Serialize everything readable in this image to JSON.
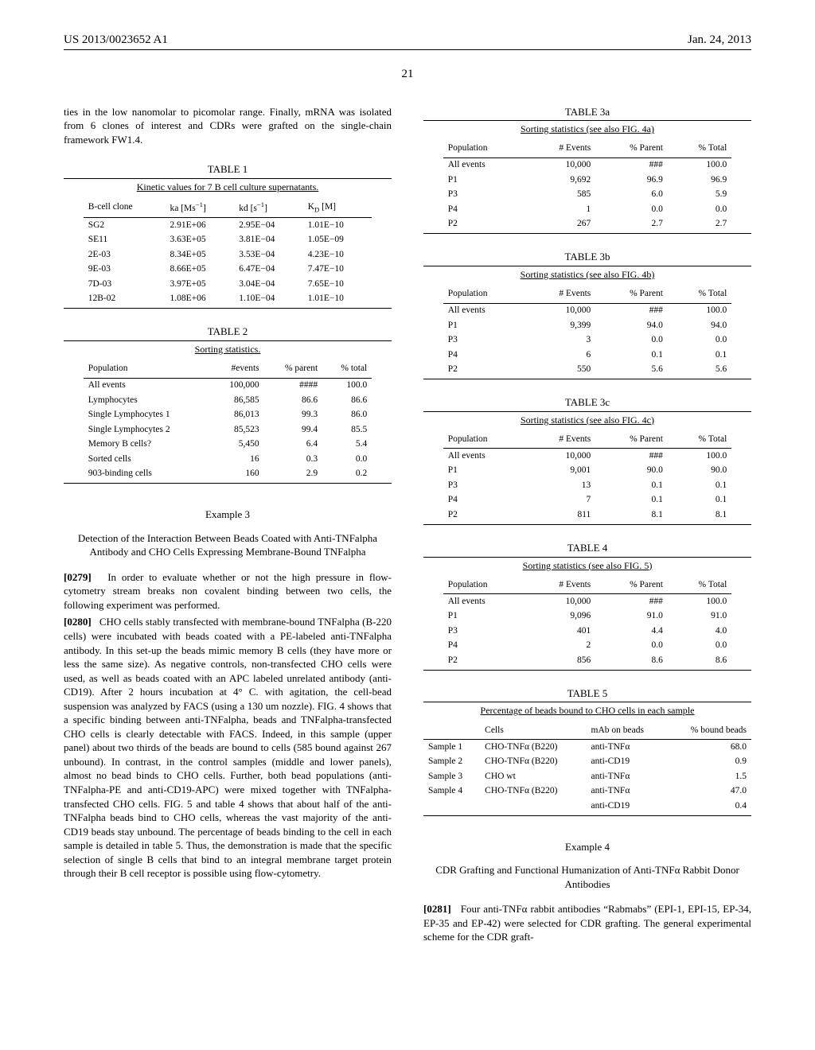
{
  "header": {
    "pub_number": "US 2013/0023652 A1",
    "pub_date": "Jan. 24, 2013",
    "page_number": "21"
  },
  "intro_text": "ties in the low nanomolar to picomolar range. Finally, mRNA was isolated from 6 clones of interest and CDRs were grafted on the single-chain framework FW1.4.",
  "table1": {
    "caption": "TABLE 1",
    "subcaption": "Kinetic values for 7 B cell culture supernatants.",
    "columns": [
      "B-cell clone",
      "ka [Ms⁻¹]",
      "kd [s⁻¹]",
      "K_D [M]"
    ],
    "rows": [
      [
        "SG2",
        "2.91E+06",
        "2.95E−04",
        "1.01E−10"
      ],
      [
        "SE11",
        "3.63E+05",
        "3.81E−04",
        "1.05E−09"
      ],
      [
        "2E-03",
        "8.34E+05",
        "3.53E−04",
        "4.23E−10"
      ],
      [
        "9E-03",
        "8.66E+05",
        "6.47E−04",
        "7.47E−10"
      ],
      [
        "7D-03",
        "3.97E+05",
        "3.04E−04",
        "7.65E−10"
      ],
      [
        "12B-02",
        "1.08E+06",
        "1.10E−04",
        "1.01E−10"
      ]
    ]
  },
  "table2": {
    "caption": "TABLE 2",
    "subcaption": "Sorting statistics.",
    "columns": [
      "Population",
      "#events",
      "% parent",
      "% total"
    ],
    "rows": [
      [
        "All events",
        "100,000",
        "####",
        "100.0"
      ],
      [
        "Lymphocytes",
        "86,585",
        "86.6",
        "86.6"
      ],
      [
        "Single Lymphocytes 1",
        "86,013",
        "99.3",
        "86.0"
      ],
      [
        "Single Lymphocytes 2",
        "85,523",
        "99.4",
        "85.5"
      ],
      [
        "Memory B cells?",
        "5,450",
        "6.4",
        "5.4"
      ],
      [
        "Sorted cells",
        "16",
        "0.3",
        "0.0"
      ],
      [
        "903-binding cells",
        "160",
        "2.9",
        "0.2"
      ]
    ]
  },
  "example3": {
    "label": "Example 3",
    "title": "Detection of the Interaction Between Beads Coated with Anti-TNFalpha Antibody and CHO Cells Expressing Membrane-Bound TNFalpha",
    "para1_num": "[0279]",
    "para1_text": "In order to evaluate whether or not the high pressure in flow-cytometry stream breaks non covalent binding between two cells, the following experiment was performed.",
    "para2_num": "[0280]",
    "para2_text": "CHO cells stably transfected with membrane-bound TNFalpha (B-220 cells) were incubated with beads coated with a PE-labeled anti-TNFalpha antibody. In this set-up the beads mimic memory B cells (they have more or less the same size). As negative controls, non-transfected CHO cells were used, as well as beads coated with an APC labeled unrelated antibody (anti-CD19). After 2 hours incubation at 4° C. with agitation, the cell-bead suspension was analyzed by FACS (using a 130 um nozzle). FIG. 4 shows that a specific binding between anti-TNFalpha, beads and TNFalpha-transfected CHO cells is clearly detectable with FACS. Indeed, in this sample (upper panel) about two thirds of the beads are bound to cells (585 bound against 267 unbound). In contrast, in the control samples (middle and lower panels), almost no bead binds to CHO cells. Further, both bead populations (anti-TNFalpha-PE and anti-CD19-APC) were mixed together with TNFalpha-transfected CHO cells. FIG. 5 and table 4 shows that about half of the anti-TNFalpha beads bind to CHO cells, whereas the vast majority of the anti-CD19 beads stay unbound. The percentage of beads binding to the cell in each sample is detailed in table 5. Thus, the demonstration is made that the specific selection of single B cells that bind to an integral membrane target protein through their B cell receptor is possible using flow-cytometry."
  },
  "table3a": {
    "caption": "TABLE 3a",
    "subcaption": "Sorting statistics (see also FIG. 4a)",
    "columns": [
      "Population",
      "# Events",
      "% Parent",
      "% Total"
    ],
    "rows": [
      [
        "All events",
        "10,000",
        "###",
        "100.0"
      ],
      [
        "P1",
        "9,692",
        "96.9",
        "96.9"
      ],
      [
        "P3",
        "585",
        "6.0",
        "5.9"
      ],
      [
        "P4",
        "1",
        "0.0",
        "0.0"
      ],
      [
        "P2",
        "267",
        "2.7",
        "2.7"
      ]
    ]
  },
  "table3b": {
    "caption": "TABLE 3b",
    "subcaption": "Sorting statistics (see also FIG. 4b)",
    "columns": [
      "Population",
      "# Events",
      "% Parent",
      "% Total"
    ],
    "rows": [
      [
        "All events",
        "10,000",
        "###",
        "100.0"
      ],
      [
        "P1",
        "9,399",
        "94.0",
        "94.0"
      ],
      [
        "P3",
        "3",
        "0.0",
        "0.0"
      ],
      [
        "P4",
        "6",
        "0.1",
        "0.1"
      ],
      [
        "P2",
        "550",
        "5.6",
        "5.6"
      ]
    ]
  },
  "table3c": {
    "caption": "TABLE 3c",
    "subcaption": "Sorting statistics (see also FIG. 4c)",
    "columns": [
      "Population",
      "# Events",
      "% Parent",
      "% Total"
    ],
    "rows": [
      [
        "All events",
        "10,000",
        "###",
        "100.0"
      ],
      [
        "P1",
        "9,001",
        "90.0",
        "90.0"
      ],
      [
        "P3",
        "13",
        "0.1",
        "0.1"
      ],
      [
        "P4",
        "7",
        "0.1",
        "0.1"
      ],
      [
        "P2",
        "811",
        "8.1",
        "8.1"
      ]
    ]
  },
  "table4": {
    "caption": "TABLE 4",
    "subcaption": "Sorting statistics (see also FIG. 5)",
    "columns": [
      "Population",
      "# Events",
      "% Parent",
      "% Total"
    ],
    "rows": [
      [
        "All events",
        "10,000",
        "###",
        "100.0"
      ],
      [
        "P1",
        "9,096",
        "91.0",
        "91.0"
      ],
      [
        "P3",
        "401",
        "4.4",
        "4.0"
      ],
      [
        "P4",
        "2",
        "0.0",
        "0.0"
      ],
      [
        "P2",
        "856",
        "8.6",
        "8.6"
      ]
    ]
  },
  "table5": {
    "caption": "TABLE 5",
    "subcaption": "Percentage of beads bound to CHO cells in each sample",
    "columns": [
      "",
      "Cells",
      "mAb on beads",
      "% bound beads"
    ],
    "rows": [
      [
        "Sample 1",
        "CHO-TNFα (B220)",
        "anti-TNFα",
        "68.0"
      ],
      [
        "Sample 2",
        "CHO-TNFα (B220)",
        "anti-CD19",
        "0.9"
      ],
      [
        "Sample 3",
        "CHO wt",
        "anti-TNFα",
        "1.5"
      ],
      [
        "Sample 4",
        "CHO-TNFα (B220)",
        "anti-TNFα",
        "47.0"
      ],
      [
        "",
        "",
        "anti-CD19",
        "0.4"
      ]
    ]
  },
  "example4": {
    "label": "Example 4",
    "title": "CDR Grafting and Functional Humanization of Anti-TNFα Rabbit Donor Antibodies",
    "para1_num": "[0281]",
    "para1_text": "Four anti-TNFα rabbit antibodies “Rabmabs” (EPI-1, EPI-15, EP-34, EP-35 and EP-42) were selected for CDR grafting. The general experimental scheme for the CDR graft-"
  }
}
